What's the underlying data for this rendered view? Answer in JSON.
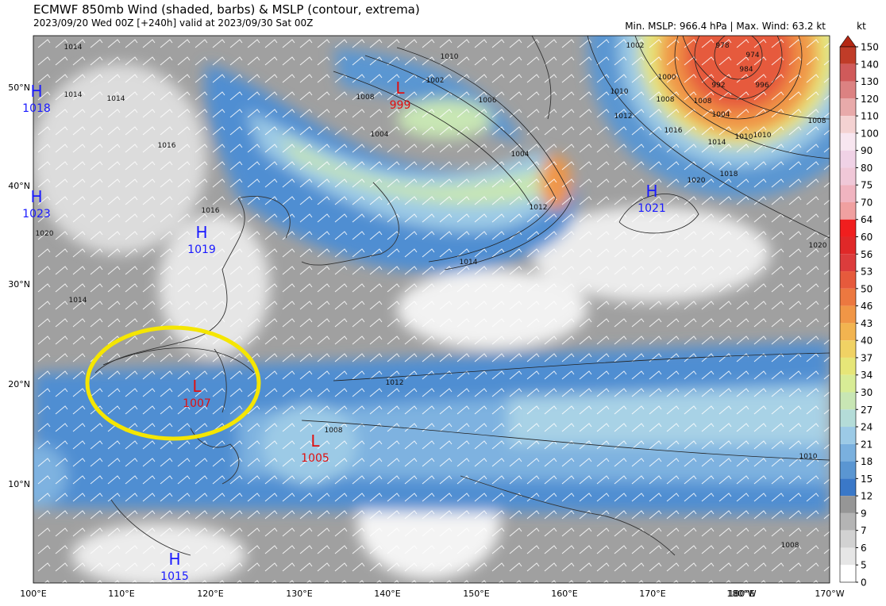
{
  "header": {
    "title": "ECMWF 850mb Wind (shaded, barbs) & MSLP (contour, extrema)",
    "subtitle": "2023/09/20 Wed 00Z [+240h] valid at 2023/09/30 Sat 00Z",
    "stats": "Min. MSLP: 966.4 hPa | Max. Wind: 63.2 kt"
  },
  "map": {
    "lon_labels": [
      "100°E",
      "110°E",
      "120°E",
      "130°E",
      "140°E",
      "150°E",
      "160°E",
      "170°E",
      "180°E",
      "180°W",
      "170°W"
    ],
    "lat_labels": [
      "50°N",
      "40°N",
      "30°N",
      "20°N",
      "10°N"
    ],
    "centers": [
      {
        "kind": "H",
        "pressure": "1018"
      },
      {
        "kind": "H",
        "pressure": "1023"
      },
      {
        "kind": "H",
        "pressure": "1019"
      },
      {
        "kind": "L",
        "pressure": "999"
      },
      {
        "kind": "H",
        "pressure": "1021"
      },
      {
        "kind": "L",
        "pressure": "1007"
      },
      {
        "kind": "L",
        "pressure": "1005"
      },
      {
        "kind": "H",
        "pressure": "1015"
      }
    ],
    "contour_labels": [
      "1014",
      "1014",
      "1014",
      "1016",
      "1016",
      "1020",
      "1014",
      "1010",
      "1002",
      "1006",
      "1004",
      "1004",
      "1008",
      "1012",
      "1014",
      "1012",
      "1010",
      "1012",
      "1008",
      "1008",
      "1010",
      "1010",
      "1008",
      "1008",
      "1002",
      "1000",
      "1004",
      "1008",
      "1010",
      "1014",
      "1016",
      "1018",
      "1020",
      "1020",
      "992",
      "996",
      "984",
      "978",
      "974"
    ]
  },
  "colorbar": {
    "unit": "kt",
    "levels": [
      150,
      140,
      130,
      120,
      110,
      100,
      90,
      80,
      75,
      70,
      64,
      60,
      56,
      53,
      50,
      46,
      43,
      40,
      37,
      34,
      30,
      27,
      24,
      21,
      18,
      15,
      12,
      9,
      7,
      6,
      5,
      0
    ],
    "colors": [
      "#b42814",
      "#c03c28",
      "#d05a5a",
      "#dc8282",
      "#e8aaaa",
      "#f4d2d2",
      "#f8e6f0",
      "#f0d2e6",
      "#f0c8d8",
      "#f0b4c0",
      "#f0a0a0",
      "#f01e1e",
      "#e02828",
      "#dc3c3c",
      "#e65a3c",
      "#ec7840",
      "#f09646",
      "#f2b450",
      "#f0d264",
      "#e6e678",
      "#d8ec96",
      "#c8e6b4",
      "#b4dcd8",
      "#9ccae6",
      "#7ab0de",
      "#5a96d2",
      "#3a78c8",
      "#969696",
      "#b4b4b4",
      "#d2d2d2",
      "#e6e6e6",
      "#ffffff"
    ]
  }
}
